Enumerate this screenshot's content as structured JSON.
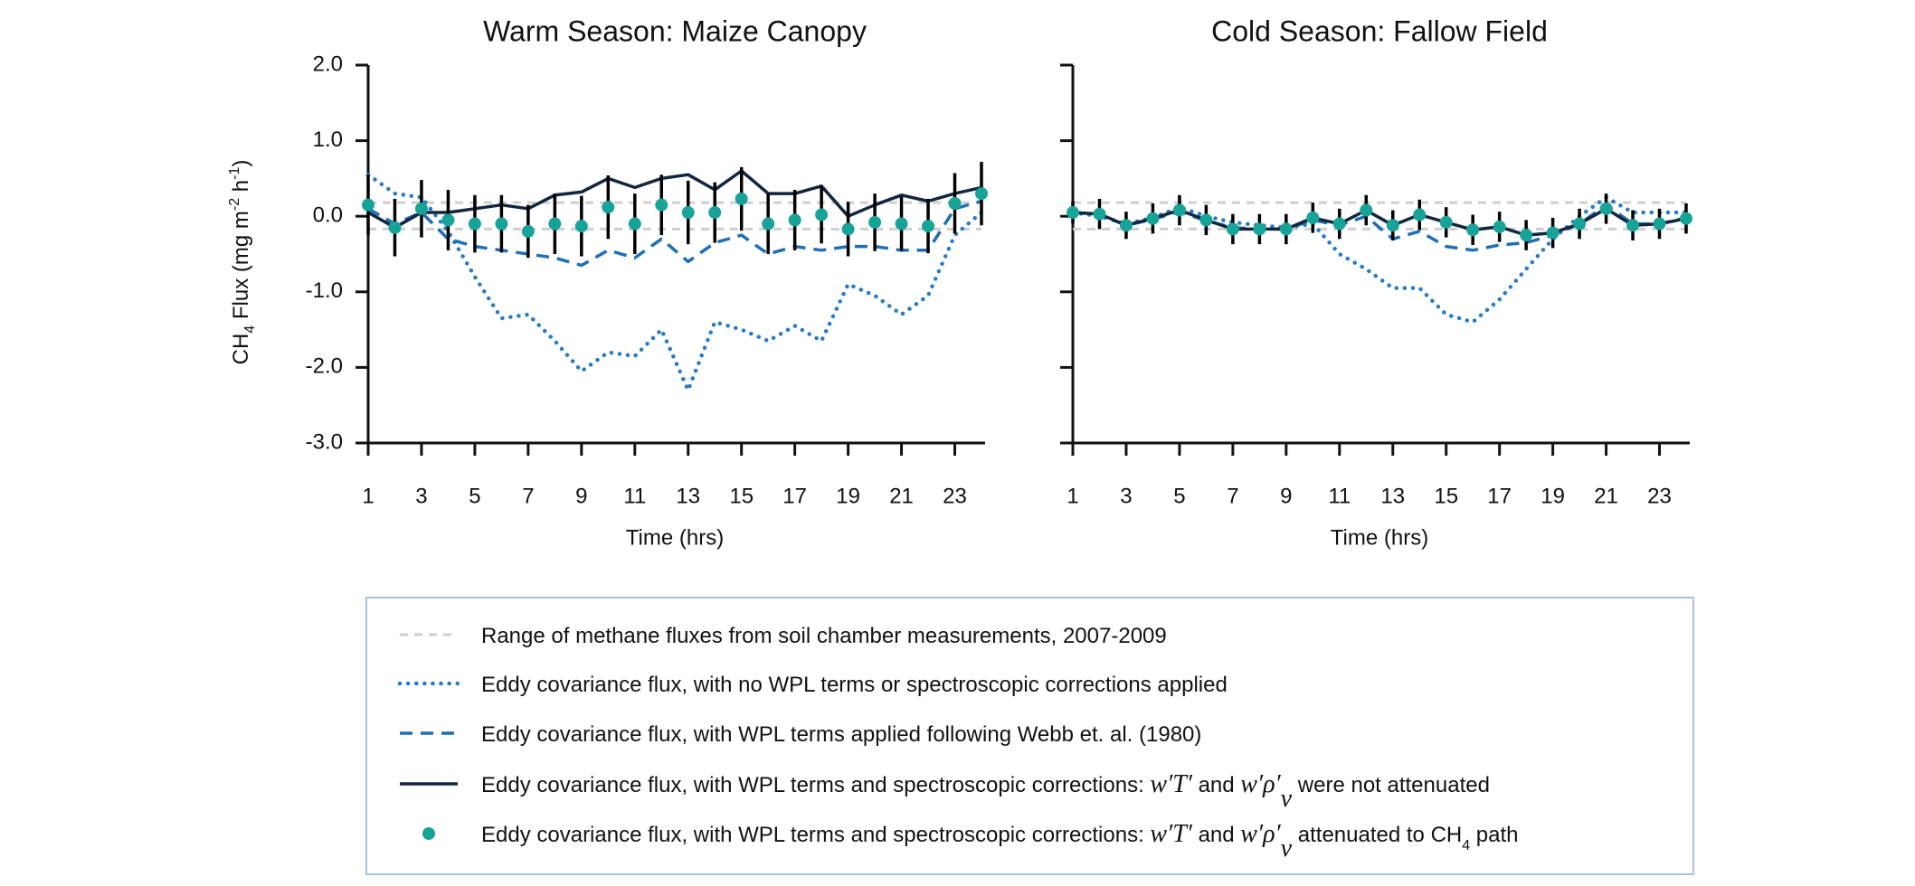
{
  "chart_data": [
    {
      "type": "line",
      "title": "Warm Season: Maize Canopy",
      "ylabel_parts": [
        "CH",
        "4",
        " Flux (mg m",
        "-2",
        " h",
        "-1",
        ")"
      ],
      "xlabel": "Time (hrs)",
      "x": [
        1,
        2,
        3,
        4,
        5,
        6,
        7,
        8,
        9,
        10,
        11,
        12,
        13,
        14,
        15,
        16,
        17,
        18,
        19,
        20,
        21,
        22,
        23,
        24
      ],
      "xlim": [
        1,
        24
      ],
      "xticks": [
        1,
        3,
        5,
        7,
        9,
        11,
        13,
        15,
        17,
        19,
        21,
        23
      ],
      "ylim": [
        -3,
        2
      ],
      "yticks": [
        {
          "value": 2,
          "label": "2.0"
        },
        {
          "value": 1,
          "label": "1.0"
        },
        {
          "value": 0,
          "label": "0.0"
        },
        {
          "value": -1,
          "label": "-1.0"
        },
        {
          "value": -2,
          "label": "-2.0"
        },
        {
          "value": -3,
          "label": "-3.0"
        }
      ],
      "ytick_labels": true,
      "chamber_range": [
        -0.17,
        0.18
      ],
      "chamber_color": "#cfcfcf",
      "series": [
        {
          "style": "dotted",
          "color": "#2a7cc0",
          "values": [
            0.55,
            0.3,
            0.25,
            -0.2,
            -0.8,
            -1.35,
            -1.3,
            -1.65,
            -2.05,
            -1.8,
            -1.85,
            -1.5,
            -2.3,
            -1.4,
            -1.5,
            -1.65,
            -1.45,
            -1.65,
            -0.9,
            -1.05,
            -1.3,
            -1.05,
            -0.25,
            0.05
          ]
        },
        {
          "style": "dashed",
          "color": "#1f6fb5",
          "values": [
            0.1,
            -0.1,
            0.05,
            -0.3,
            -0.4,
            -0.45,
            -0.5,
            -0.55,
            -0.65,
            -0.45,
            -0.55,
            -0.3,
            -0.6,
            -0.35,
            -0.25,
            -0.5,
            -0.4,
            -0.45,
            -0.4,
            -0.4,
            -0.45,
            -0.45,
            0.1,
            0.2
          ]
        },
        {
          "style": "solid",
          "color": "#12263f",
          "values": [
            0.05,
            -0.15,
            0.05,
            0.05,
            0.1,
            0.15,
            0.1,
            0.28,
            0.32,
            0.5,
            0.38,
            0.5,
            0.55,
            0.35,
            0.6,
            0.3,
            0.3,
            0.4,
            0.0,
            0.15,
            0.28,
            0.2,
            0.3,
            0.38
          ]
        },
        {
          "style": "points",
          "color": "#17a398",
          "error_color": "#000000",
          "values": [
            0.15,
            -0.15,
            0.1,
            -0.05,
            -0.1,
            -0.1,
            -0.2,
            -0.1,
            -0.13,
            0.12,
            -0.1,
            0.15,
            0.05,
            0.05,
            0.23,
            -0.1,
            -0.05,
            0.02,
            -0.17,
            -0.08,
            -0.1,
            -0.13,
            0.17,
            0.3
          ],
          "errors": [
            0.4,
            0.38,
            0.38,
            0.4,
            0.38,
            0.38,
            0.35,
            0.4,
            0.4,
            0.42,
            0.4,
            0.4,
            0.42,
            0.4,
            0.42,
            0.4,
            0.4,
            0.38,
            0.36,
            0.38,
            0.36,
            0.36,
            0.4,
            0.42
          ]
        }
      ]
    },
    {
      "type": "line",
      "title": "Cold Season: Fallow Field",
      "xlabel": "Time (hrs)",
      "x": [
        1,
        2,
        3,
        4,
        5,
        6,
        7,
        8,
        9,
        10,
        11,
        12,
        13,
        14,
        15,
        16,
        17,
        18,
        19,
        20,
        21,
        22,
        23,
        24
      ],
      "xlim": [
        1,
        24
      ],
      "xticks": [
        1,
        3,
        5,
        7,
        9,
        11,
        13,
        15,
        17,
        19,
        21,
        23
      ],
      "ylim": [
        -3,
        2
      ],
      "yticks": [
        {
          "value": 2,
          "label": "2.0"
        },
        {
          "value": 1,
          "label": "1.0"
        },
        {
          "value": 0,
          "label": "0.0"
        },
        {
          "value": -1,
          "label": "-1.0"
        },
        {
          "value": -2,
          "label": "-2.0"
        },
        {
          "value": -3,
          "label": "-3.0"
        }
      ],
      "ytick_labels": false,
      "chamber_range": [
        -0.17,
        0.18
      ],
      "chamber_color": "#cfcfcf",
      "series": [
        {
          "style": "dotted",
          "color": "#2a7cc0",
          "values": [
            0.05,
            0.0,
            -0.1,
            -0.02,
            0.12,
            0.0,
            -0.08,
            -0.12,
            -0.15,
            -0.1,
            -0.5,
            -0.7,
            -0.95,
            -0.95,
            -1.3,
            -1.4,
            -1.1,
            -0.7,
            -0.3,
            0.0,
            0.25,
            0.05,
            0.05,
            0.05
          ]
        },
        {
          "style": "dashed",
          "color": "#1f6fb5",
          "values": [
            0.05,
            0.02,
            -0.12,
            -0.04,
            0.06,
            -0.06,
            -0.15,
            -0.17,
            -0.17,
            -0.05,
            -0.12,
            0.0,
            -0.3,
            -0.2,
            -0.4,
            -0.45,
            -0.38,
            -0.35,
            -0.25,
            -0.1,
            0.15,
            -0.1,
            -0.1,
            -0.02
          ]
        },
        {
          "style": "solid",
          "color": "#12263f",
          "values": [
            0.05,
            0.03,
            -0.12,
            -0.03,
            0.08,
            -0.05,
            -0.17,
            -0.17,
            -0.17,
            -0.02,
            -0.1,
            0.08,
            -0.12,
            0.02,
            -0.08,
            -0.18,
            -0.14,
            -0.25,
            -0.22,
            -0.1,
            0.1,
            -0.12,
            -0.1,
            -0.03
          ]
        },
        {
          "style": "points",
          "color": "#17a398",
          "error_color": "#000000",
          "values": [
            0.05,
            0.03,
            -0.12,
            -0.03,
            0.08,
            -0.05,
            -0.17,
            -0.17,
            -0.17,
            -0.02,
            -0.1,
            0.08,
            -0.12,
            0.02,
            -0.08,
            -0.18,
            -0.14,
            -0.25,
            -0.22,
            -0.1,
            0.1,
            -0.12,
            -0.1,
            -0.03
          ],
          "errors": [
            0.15,
            0.2,
            0.18,
            0.2,
            0.2,
            0.2,
            0.2,
            0.2,
            0.2,
            0.2,
            0.2,
            0.2,
            0.2,
            0.2,
            0.2,
            0.2,
            0.2,
            0.2,
            0.2,
            0.2,
            0.2,
            0.2,
            0.2,
            0.2
          ]
        }
      ]
    }
  ],
  "legend": [
    [
      "Range of methane fluxes from soil chamber measurements, 2007-2009"
    ],
    [
      "Eddy covariance flux, with no WPL terms or spectroscopic corrections applied"
    ],
    [
      "Eddy covariance flux, with WPL terms applied following Webb et. al. (1980)"
    ],
    [
      "Eddy covariance flux, with WPL terms and spectroscopic corrections: ",
      "w′T′",
      " and ",
      "w′ρ′",
      "v",
      " were not attenuated"
    ],
    [
      "Eddy covariance flux, with WPL terms and spectroscopic corrections: ",
      "w′T′",
      " and ",
      "w′ρ′",
      "v",
      " attenuated to CH",
      "4",
      " path"
    ]
  ]
}
